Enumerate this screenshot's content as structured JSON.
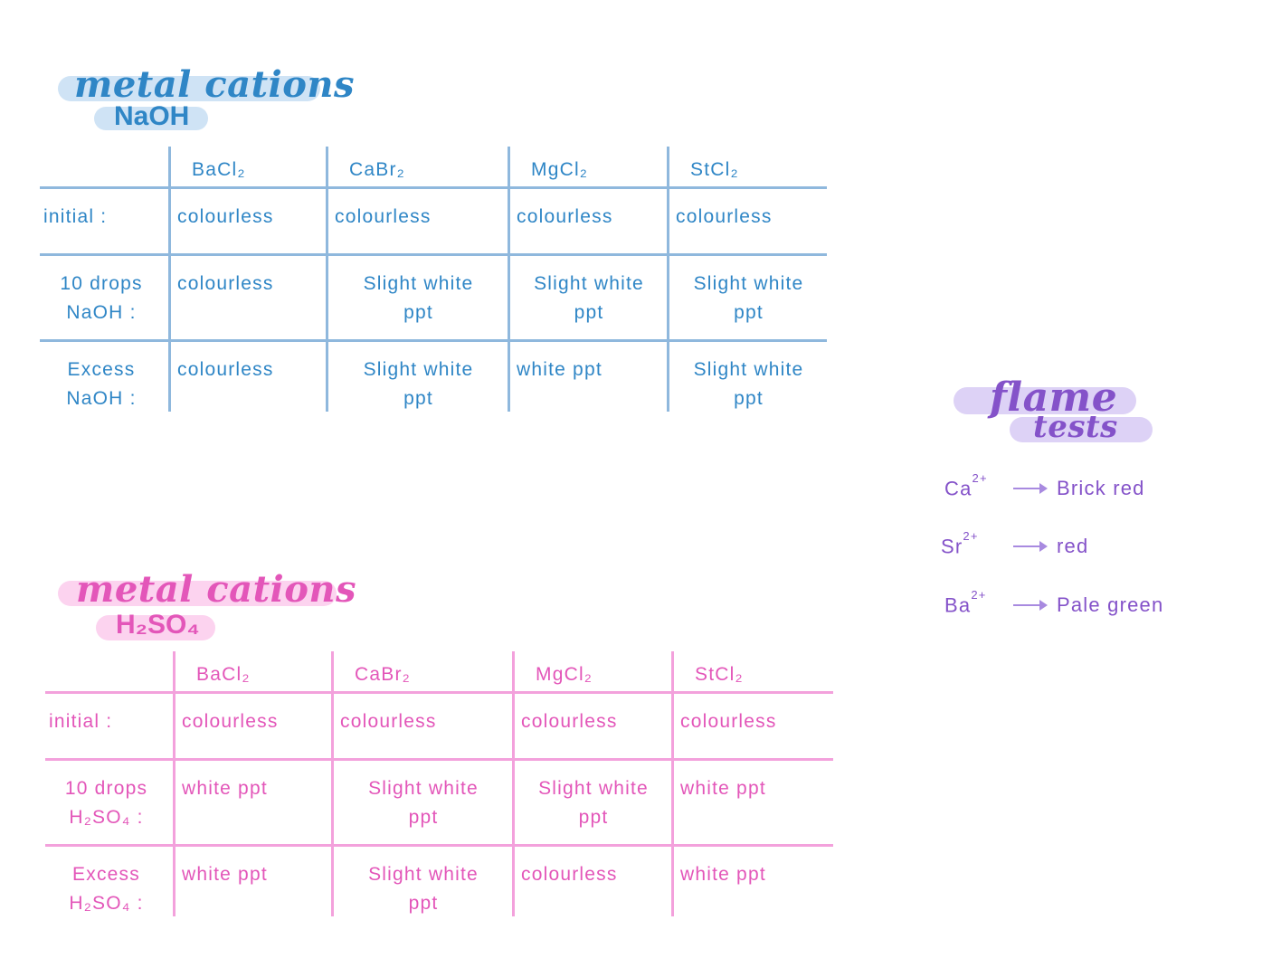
{
  "naoh_section": {
    "title": "metal cations",
    "reagent": "NaOH",
    "columns": [
      "BaCl₂",
      "CaBr₂",
      "MgCl₂",
      "StCl₂"
    ],
    "rows": [
      {
        "label": [
          "initial :"
        ],
        "cells": [
          [
            "colourless"
          ],
          [
            "colourless"
          ],
          [
            "colourless"
          ],
          [
            "colourless"
          ]
        ]
      },
      {
        "label": [
          "10 drops",
          "NaOH :"
        ],
        "cells": [
          [
            "colourless"
          ],
          [
            "Slight white",
            "ppt"
          ],
          [
            "Slight white",
            "ppt"
          ],
          [
            "Slight white",
            "ppt"
          ]
        ]
      },
      {
        "label": [
          "Excess",
          "NaOH :"
        ],
        "cells": [
          [
            "colourless"
          ],
          [
            "Slight white",
            "ppt"
          ],
          [
            "white ppt"
          ],
          [
            "Slight white",
            "ppt"
          ]
        ]
      }
    ]
  },
  "h2so4_section": {
    "title": "metal cations",
    "reagent": "H₂SO₄",
    "columns": [
      "BaCl₂",
      "CaBr₂",
      "MgCl₂",
      "StCl₂"
    ],
    "rows": [
      {
        "label": [
          "initial :"
        ],
        "cells": [
          [
            "colourless"
          ],
          [
            "colourless"
          ],
          [
            "colourless"
          ],
          [
            "colourless"
          ]
        ]
      },
      {
        "label": [
          "10 drops",
          "H₂SO₄ :"
        ],
        "cells": [
          [
            "white ppt"
          ],
          [
            "Slight white",
            "ppt"
          ],
          [
            "Slight white",
            "ppt"
          ],
          [
            "white ppt"
          ]
        ]
      },
      {
        "label": [
          "Excess",
          "H₂SO₄ :"
        ],
        "cells": [
          [
            "white ppt"
          ],
          [
            "Slight white",
            "ppt"
          ],
          [
            "colourless"
          ],
          [
            "white ppt"
          ]
        ]
      }
    ]
  },
  "flame_tests": {
    "title_line1": "flame",
    "title_line2": "tests",
    "items": [
      {
        "ion": "Ca",
        "charge": "2+",
        "colour": "Brick red"
      },
      {
        "ion": "Sr",
        "charge": "2+",
        "colour": "red"
      },
      {
        "ion": "Ba",
        "charge": "2+",
        "colour": "Pale green"
      }
    ]
  },
  "colors": {
    "blue_ink": "#2f86c6",
    "blue_line": "#8fb8dd",
    "blue_highlight": "#cfe3f5",
    "pink_ink": "#e356b9",
    "pink_line": "#f3a1dc",
    "pink_highlight": "#fcd3ef",
    "purple_ink": "#8452c9",
    "purple_highlight": "#ddd2f6"
  }
}
